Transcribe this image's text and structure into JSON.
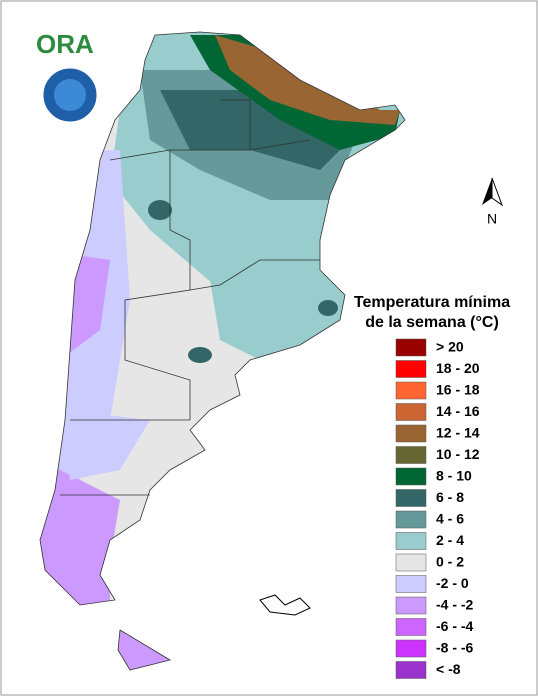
{
  "logo": "ORA",
  "north_arrow": "N",
  "legend": {
    "title": [
      "Temperatura mínima",
      "de la semana (°C)"
    ],
    "items": [
      {
        "label": "> 20",
        "color": "#990000"
      },
      {
        "label": "18 - 20",
        "color": "#ff0000"
      },
      {
        "label": "16 - 18",
        "color": "#ff6633"
      },
      {
        "label": "14 - 16",
        "color": "#cc6633"
      },
      {
        "label": "12 - 14",
        "color": "#996633"
      },
      {
        "label": "10 - 12",
        "color": "#666633"
      },
      {
        "label": "8 - 10",
        "color": "#006633"
      },
      {
        "label": "6 - 8",
        "color": "#336666"
      },
      {
        "label": "4 - 6",
        "color": "#669999"
      },
      {
        "label": "2 - 4",
        "color": "#99cccc"
      },
      {
        "label": "0 - 2",
        "color": "#e6e6e6"
      },
      {
        "label": "-2 - 0",
        "color": "#ccccff"
      },
      {
        "label": "-4 - -2",
        "color": "#cc99ff"
      },
      {
        "label": "-6 - -4",
        "color": "#cc66ff"
      },
      {
        "label": "-8 - -6",
        "color": "#cc33ff"
      },
      {
        "label": "< -8",
        "color": "#9933cc"
      }
    ]
  }
}
